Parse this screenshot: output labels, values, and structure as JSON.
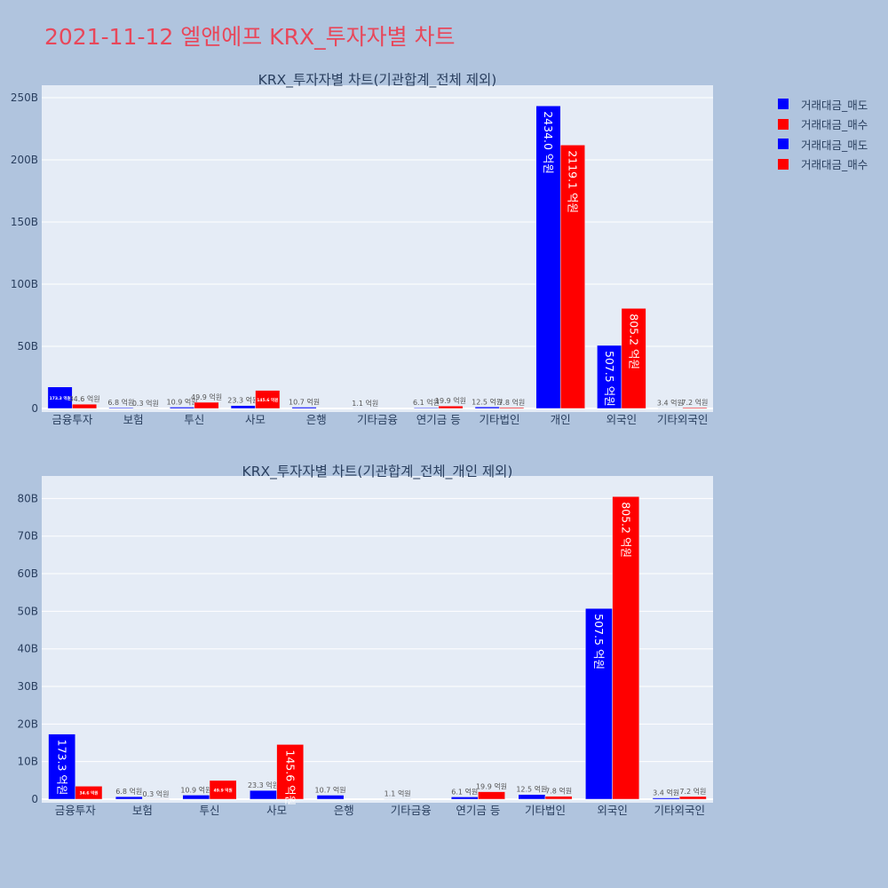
{
  "title": "2021-11-12 엘앤에프 KRX_투자자별 차트",
  "colors": {
    "sell": "#0000ff",
    "buy": "#ff0000",
    "plot_bg": "#e5ecf6",
    "page_bg": "#b0c4de",
    "title": "#e8475a"
  },
  "legend": [
    {
      "label": "거래대금_매도",
      "color": "#0000ff"
    },
    {
      "label": "거래대금_매수",
      "color": "#ff0000"
    },
    {
      "label": "거래대금_매도",
      "color": "#0000ff"
    },
    {
      "label": "거래대금_매수",
      "color": "#ff0000"
    }
  ],
  "chart_data": [
    {
      "type": "bar",
      "title": "KRX_투자자별 차트(기관합계_전체 제외)",
      "categories": [
        "금융투자",
        "보험",
        "투신",
        "사모",
        "은행",
        "기타금융",
        "연기금 등",
        "기타법인",
        "개인",
        "외국인",
        "기타외국인"
      ],
      "ylim": [
        0,
        260
      ],
      "yticks": [
        0,
        50,
        100,
        150,
        200,
        250
      ],
      "ytick_labels": [
        "0",
        "50B",
        "100B",
        "150B",
        "200B",
        "250B"
      ],
      "series": [
        {
          "name": "거래대금_매도",
          "values": [
            17.33,
            0.68,
            1.09,
            2.33,
            1.07,
            0.11,
            0.61,
            1.25,
            243.4,
            50.75,
            0.34
          ],
          "labels": [
            "173.3 억원",
            "6.8 억원",
            "10.9 억원",
            "23.3 억원",
            "10.7 억원",
            "1.1 억원",
            "6.1 억원",
            "12.5 억원",
            "2434.0 억원",
            "507.5 억원",
            "3.4 억원"
          ]
        },
        {
          "name": "거래대금_매수",
          "values": [
            3.46,
            0.03,
            4.99,
            14.56,
            0,
            0,
            1.99,
            0.78,
            211.91,
            80.52,
            0.72
          ],
          "labels": [
            "34.6 억원",
            "0.3 억원",
            "49.9 억원",
            "145.6 억원",
            "",
            "",
            "19.9 억원",
            "7.8 억원",
            "2119.1 억원",
            "805.2 억원",
            "7.2 억원"
          ]
        }
      ]
    },
    {
      "type": "bar",
      "title": "KRX_투자자별 차트(기관합계_전체_개인 제외)",
      "categories": [
        "금융투자",
        "보험",
        "투신",
        "사모",
        "은행",
        "기타금융",
        "연기금 등",
        "기타법인",
        "외국인",
        "기타외국인"
      ],
      "ylim": [
        0,
        86
      ],
      "yticks": [
        0,
        10,
        20,
        30,
        40,
        50,
        60,
        70,
        80
      ],
      "ytick_labels": [
        "0",
        "10B",
        "20B",
        "30B",
        "40B",
        "50B",
        "60B",
        "70B",
        "80B"
      ],
      "series": [
        {
          "name": "거래대금_매도",
          "values": [
            17.33,
            0.68,
            1.09,
            2.33,
            1.07,
            0.11,
            0.61,
            1.25,
            50.75,
            0.34
          ],
          "labels": [
            "173.3 억원",
            "6.8 억원",
            "10.9 억원",
            "23.3 억원",
            "10.7 억원",
            "1.1 억원",
            "6.1 억원",
            "12.5 억원",
            "507.5 억원",
            "3.4 억원"
          ]
        },
        {
          "name": "거래대금_매수",
          "values": [
            3.46,
            0.03,
            4.99,
            14.56,
            0,
            0,
            1.99,
            0.78,
            80.52,
            0.72
          ],
          "labels": [
            "34.6 억원",
            "0.3 억원",
            "49.9 억원",
            "145.6 억원",
            "",
            "",
            "19.9 억원",
            "7.8 억원",
            "805.2 억원",
            "7.2 억원"
          ]
        }
      ]
    }
  ]
}
